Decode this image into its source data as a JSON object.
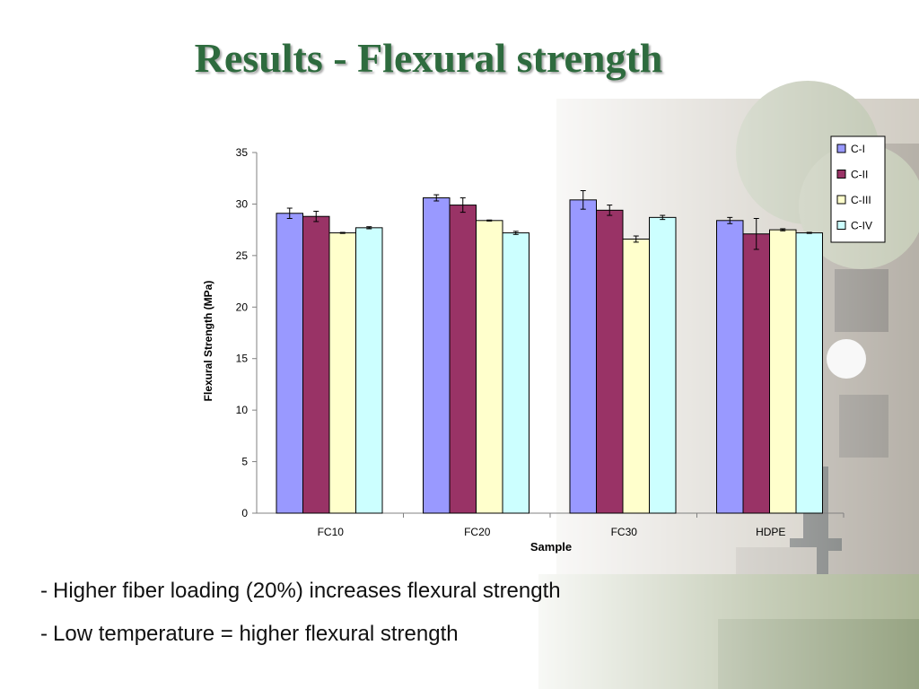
{
  "slide": {
    "title": "Results - Flexural strength",
    "bullets": [
      "Higher fiber loading (20%) increases flexural strength",
      "Low temperature = higher flexural strength"
    ],
    "bullet_marker": "-"
  },
  "colors": {
    "title": "#2e6b3e",
    "C-I": "#9999ff",
    "C-II": "#993366",
    "C-III": "#ffffcc",
    "C-IV": "#ccffff"
  },
  "chart_data": {
    "type": "bar",
    "title": "",
    "xlabel": "Sample",
    "ylabel": "Flexural Strength (MPa)",
    "ylim": [
      0,
      35
    ],
    "yticks": [
      0,
      5,
      10,
      15,
      20,
      25,
      30,
      35
    ],
    "categories": [
      "FC10",
      "FC20",
      "FC30",
      "HDPE"
    ],
    "series": [
      {
        "name": "C-I",
        "values": [
          29.1,
          30.6,
          30.4,
          28.4
        ],
        "errors": [
          0.5,
          0.3,
          0.9,
          0.3
        ]
      },
      {
        "name": "C-II",
        "values": [
          28.8,
          29.9,
          29.4,
          27.1
        ],
        "errors": [
          0.5,
          0.7,
          0.5,
          1.5
        ]
      },
      {
        "name": "C-III",
        "values": [
          27.2,
          28.4,
          26.6,
          27.5
        ],
        "errors": [
          0.05,
          0.05,
          0.3,
          0.1
        ]
      },
      {
        "name": "C-IV",
        "values": [
          27.7,
          27.2,
          28.7,
          27.2
        ],
        "errors": [
          0.1,
          0.15,
          0.2,
          0.05
        ]
      }
    ],
    "legend_position": "top-right",
    "grid": false,
    "error_bars": true
  }
}
